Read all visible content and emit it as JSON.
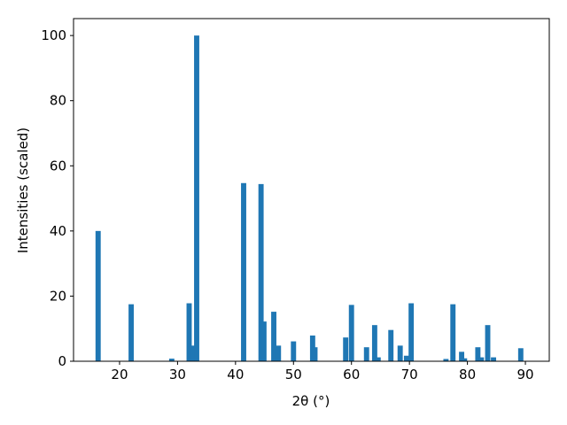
{
  "chart_data": {
    "type": "bar",
    "xlabel": "2θ (°)",
    "ylabel": "Intensities (scaled)",
    "color": "#1f77b4",
    "x": [
      16.3,
      22.0,
      29.0,
      32.0,
      32.6,
      33.3,
      41.4,
      44.4,
      44.9,
      46.6,
      47.4,
      50.0,
      53.3,
      53.7,
      59.0,
      60.0,
      62.6,
      64.0,
      64.6,
      66.8,
      68.4,
      69.5,
      70.3,
      76.3,
      77.5,
      79.0,
      79.5,
      81.8,
      82.4,
      83.5,
      84.5,
      89.2
    ],
    "values": [
      40,
      17.5,
      0.8,
      17.8,
      4.8,
      100,
      54.7,
      54.4,
      12.2,
      15.2,
      4.8,
      6.1,
      7.9,
      4.3,
      7.3,
      17.3,
      4.3,
      11.1,
      1.2,
      9.6,
      4.8,
      1.7,
      17.8,
      0.7,
      17.5,
      2.9,
      0.9,
      4.3,
      1.2,
      11.1,
      1.2,
      4.0
    ],
    "xlim": [
      12.06,
      94.12
    ],
    "ylim": [
      0,
      105.2
    ],
    "xticks": [
      20,
      30,
      40,
      50,
      60,
      70,
      80,
      90
    ],
    "yticks": [
      0,
      20,
      40,
      60,
      80,
      100
    ]
  }
}
